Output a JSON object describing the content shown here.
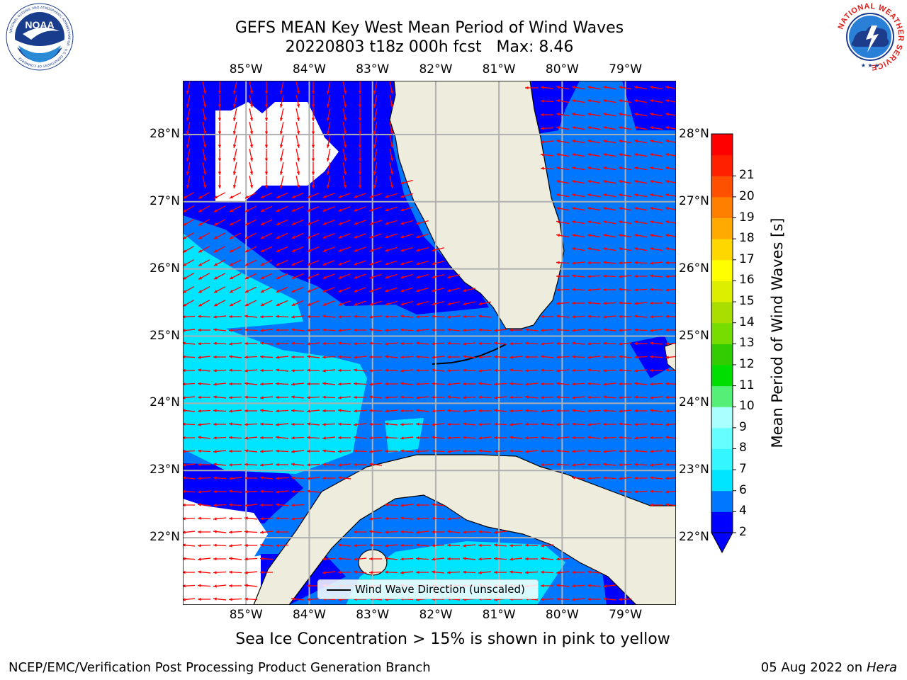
{
  "header": {
    "title_line1": "GEFS MEAN Key West Mean Period of Wind Waves",
    "title_line2": "20220803 t18z 000h fcst   Max: 8.46"
  },
  "logos": {
    "noaa_text": "NOAA",
    "noaa_ring_text": "NATIONAL OCEANIC AND ATMOSPHERIC ADMINISTRATION · U.S. DEPARTMENT OF COMMERCE",
    "nws_ring_text": "NATIONAL WEATHER SERVICE"
  },
  "map": {
    "lon_ticks": [
      "85°W",
      "84°W",
      "83°W",
      "82°W",
      "81°W",
      "80°W",
      "79°W"
    ],
    "lat_ticks": [
      "28°N",
      "27°N",
      "26°N",
      "25°N",
      "24°N",
      "23°N",
      "22°N"
    ],
    "lon_range": [
      -86.0,
      -78.2
    ],
    "lat_range": [
      21.0,
      28.8
    ],
    "legend_label": "Wind Wave Direction (unscaled)",
    "land_color": "#eeecdc",
    "arrow_color": "#ff0000"
  },
  "colorbar": {
    "title": "Mean Period of Wind Waves [s]",
    "ticks": [
      "2",
      "4",
      "6",
      "7",
      "8",
      "9",
      "10",
      "11",
      "12",
      "13",
      "14",
      "15",
      "16",
      "17",
      "18",
      "19",
      "20",
      "21"
    ],
    "colors": [
      "#0000ff",
      "#0077ff",
      "#00e5ff",
      "#33f6ff",
      "#66ffff",
      "#aaffff",
      "#55ee77",
      "#00dd00",
      "#33cc00",
      "#77dd00",
      "#aadd00",
      "#ddee00",
      "#ffff00",
      "#ffd700",
      "#ffaa00",
      "#ff7f00",
      "#ff5000",
      "#ff2000",
      "#ff0000"
    ],
    "extend": "min"
  },
  "caption": "Sea Ice Concentration > 15% is shown in pink to yellow",
  "footer": {
    "left": "NCEP/EMC/Verification Post Processing Product Generation Branch",
    "right_date": "05 Aug 2022 on",
    "right_machine": "Hera"
  }
}
